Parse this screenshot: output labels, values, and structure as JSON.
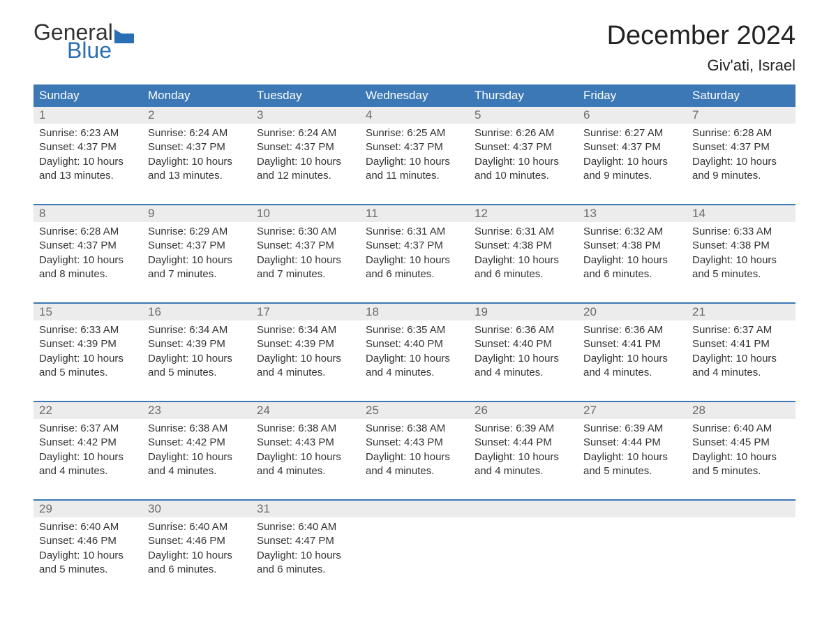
{
  "logo": {
    "textTop": "General",
    "textBottom": "Blue",
    "flagColor": "#2a6fb3",
    "topColor": "#333333",
    "bottomColor": "#2a6fb3"
  },
  "title": "December 2024",
  "location": "Giv'ati, Israel",
  "colors": {
    "headerBg": "#3b78b5",
    "headerText": "#ffffff",
    "dayNumBg": "#ececec",
    "dayNumText": "#6b6b6b",
    "bodyText": "#333333",
    "weekBorder": "#3b78b5",
    "background": "#ffffff"
  },
  "weekdays": [
    "Sunday",
    "Monday",
    "Tuesday",
    "Wednesday",
    "Thursday",
    "Friday",
    "Saturday"
  ],
  "weeks": [
    [
      {
        "num": "1",
        "sunrise": "Sunrise: 6:23 AM",
        "sunset": "Sunset: 4:37 PM",
        "daylight1": "Daylight: 10 hours",
        "daylight2": "and 13 minutes."
      },
      {
        "num": "2",
        "sunrise": "Sunrise: 6:24 AM",
        "sunset": "Sunset: 4:37 PM",
        "daylight1": "Daylight: 10 hours",
        "daylight2": "and 13 minutes."
      },
      {
        "num": "3",
        "sunrise": "Sunrise: 6:24 AM",
        "sunset": "Sunset: 4:37 PM",
        "daylight1": "Daylight: 10 hours",
        "daylight2": "and 12 minutes."
      },
      {
        "num": "4",
        "sunrise": "Sunrise: 6:25 AM",
        "sunset": "Sunset: 4:37 PM",
        "daylight1": "Daylight: 10 hours",
        "daylight2": "and 11 minutes."
      },
      {
        "num": "5",
        "sunrise": "Sunrise: 6:26 AM",
        "sunset": "Sunset: 4:37 PM",
        "daylight1": "Daylight: 10 hours",
        "daylight2": "and 10 minutes."
      },
      {
        "num": "6",
        "sunrise": "Sunrise: 6:27 AM",
        "sunset": "Sunset: 4:37 PM",
        "daylight1": "Daylight: 10 hours",
        "daylight2": "and 9 minutes."
      },
      {
        "num": "7",
        "sunrise": "Sunrise: 6:28 AM",
        "sunset": "Sunset: 4:37 PM",
        "daylight1": "Daylight: 10 hours",
        "daylight2": "and 9 minutes."
      }
    ],
    [
      {
        "num": "8",
        "sunrise": "Sunrise: 6:28 AM",
        "sunset": "Sunset: 4:37 PM",
        "daylight1": "Daylight: 10 hours",
        "daylight2": "and 8 minutes."
      },
      {
        "num": "9",
        "sunrise": "Sunrise: 6:29 AM",
        "sunset": "Sunset: 4:37 PM",
        "daylight1": "Daylight: 10 hours",
        "daylight2": "and 7 minutes."
      },
      {
        "num": "10",
        "sunrise": "Sunrise: 6:30 AM",
        "sunset": "Sunset: 4:37 PM",
        "daylight1": "Daylight: 10 hours",
        "daylight2": "and 7 minutes."
      },
      {
        "num": "11",
        "sunrise": "Sunrise: 6:31 AM",
        "sunset": "Sunset: 4:37 PM",
        "daylight1": "Daylight: 10 hours",
        "daylight2": "and 6 minutes."
      },
      {
        "num": "12",
        "sunrise": "Sunrise: 6:31 AM",
        "sunset": "Sunset: 4:38 PM",
        "daylight1": "Daylight: 10 hours",
        "daylight2": "and 6 minutes."
      },
      {
        "num": "13",
        "sunrise": "Sunrise: 6:32 AM",
        "sunset": "Sunset: 4:38 PM",
        "daylight1": "Daylight: 10 hours",
        "daylight2": "and 6 minutes."
      },
      {
        "num": "14",
        "sunrise": "Sunrise: 6:33 AM",
        "sunset": "Sunset: 4:38 PM",
        "daylight1": "Daylight: 10 hours",
        "daylight2": "and 5 minutes."
      }
    ],
    [
      {
        "num": "15",
        "sunrise": "Sunrise: 6:33 AM",
        "sunset": "Sunset: 4:39 PM",
        "daylight1": "Daylight: 10 hours",
        "daylight2": "and 5 minutes."
      },
      {
        "num": "16",
        "sunrise": "Sunrise: 6:34 AM",
        "sunset": "Sunset: 4:39 PM",
        "daylight1": "Daylight: 10 hours",
        "daylight2": "and 5 minutes."
      },
      {
        "num": "17",
        "sunrise": "Sunrise: 6:34 AM",
        "sunset": "Sunset: 4:39 PM",
        "daylight1": "Daylight: 10 hours",
        "daylight2": "and 4 minutes."
      },
      {
        "num": "18",
        "sunrise": "Sunrise: 6:35 AM",
        "sunset": "Sunset: 4:40 PM",
        "daylight1": "Daylight: 10 hours",
        "daylight2": "and 4 minutes."
      },
      {
        "num": "19",
        "sunrise": "Sunrise: 6:36 AM",
        "sunset": "Sunset: 4:40 PM",
        "daylight1": "Daylight: 10 hours",
        "daylight2": "and 4 minutes."
      },
      {
        "num": "20",
        "sunrise": "Sunrise: 6:36 AM",
        "sunset": "Sunset: 4:41 PM",
        "daylight1": "Daylight: 10 hours",
        "daylight2": "and 4 minutes."
      },
      {
        "num": "21",
        "sunrise": "Sunrise: 6:37 AM",
        "sunset": "Sunset: 4:41 PM",
        "daylight1": "Daylight: 10 hours",
        "daylight2": "and 4 minutes."
      }
    ],
    [
      {
        "num": "22",
        "sunrise": "Sunrise: 6:37 AM",
        "sunset": "Sunset: 4:42 PM",
        "daylight1": "Daylight: 10 hours",
        "daylight2": "and 4 minutes."
      },
      {
        "num": "23",
        "sunrise": "Sunrise: 6:38 AM",
        "sunset": "Sunset: 4:42 PM",
        "daylight1": "Daylight: 10 hours",
        "daylight2": "and 4 minutes."
      },
      {
        "num": "24",
        "sunrise": "Sunrise: 6:38 AM",
        "sunset": "Sunset: 4:43 PM",
        "daylight1": "Daylight: 10 hours",
        "daylight2": "and 4 minutes."
      },
      {
        "num": "25",
        "sunrise": "Sunrise: 6:38 AM",
        "sunset": "Sunset: 4:43 PM",
        "daylight1": "Daylight: 10 hours",
        "daylight2": "and 4 minutes."
      },
      {
        "num": "26",
        "sunrise": "Sunrise: 6:39 AM",
        "sunset": "Sunset: 4:44 PM",
        "daylight1": "Daylight: 10 hours",
        "daylight2": "and 4 minutes."
      },
      {
        "num": "27",
        "sunrise": "Sunrise: 6:39 AM",
        "sunset": "Sunset: 4:44 PM",
        "daylight1": "Daylight: 10 hours",
        "daylight2": "and 5 minutes."
      },
      {
        "num": "28",
        "sunrise": "Sunrise: 6:40 AM",
        "sunset": "Sunset: 4:45 PM",
        "daylight1": "Daylight: 10 hours",
        "daylight2": "and 5 minutes."
      }
    ],
    [
      {
        "num": "29",
        "sunrise": "Sunrise: 6:40 AM",
        "sunset": "Sunset: 4:46 PM",
        "daylight1": "Daylight: 10 hours",
        "daylight2": "and 5 minutes."
      },
      {
        "num": "30",
        "sunrise": "Sunrise: 6:40 AM",
        "sunset": "Sunset: 4:46 PM",
        "daylight1": "Daylight: 10 hours",
        "daylight2": "and 6 minutes."
      },
      {
        "num": "31",
        "sunrise": "Sunrise: 6:40 AM",
        "sunset": "Sunset: 4:47 PM",
        "daylight1": "Daylight: 10 hours",
        "daylight2": "and 6 minutes."
      },
      null,
      null,
      null,
      null
    ]
  ]
}
